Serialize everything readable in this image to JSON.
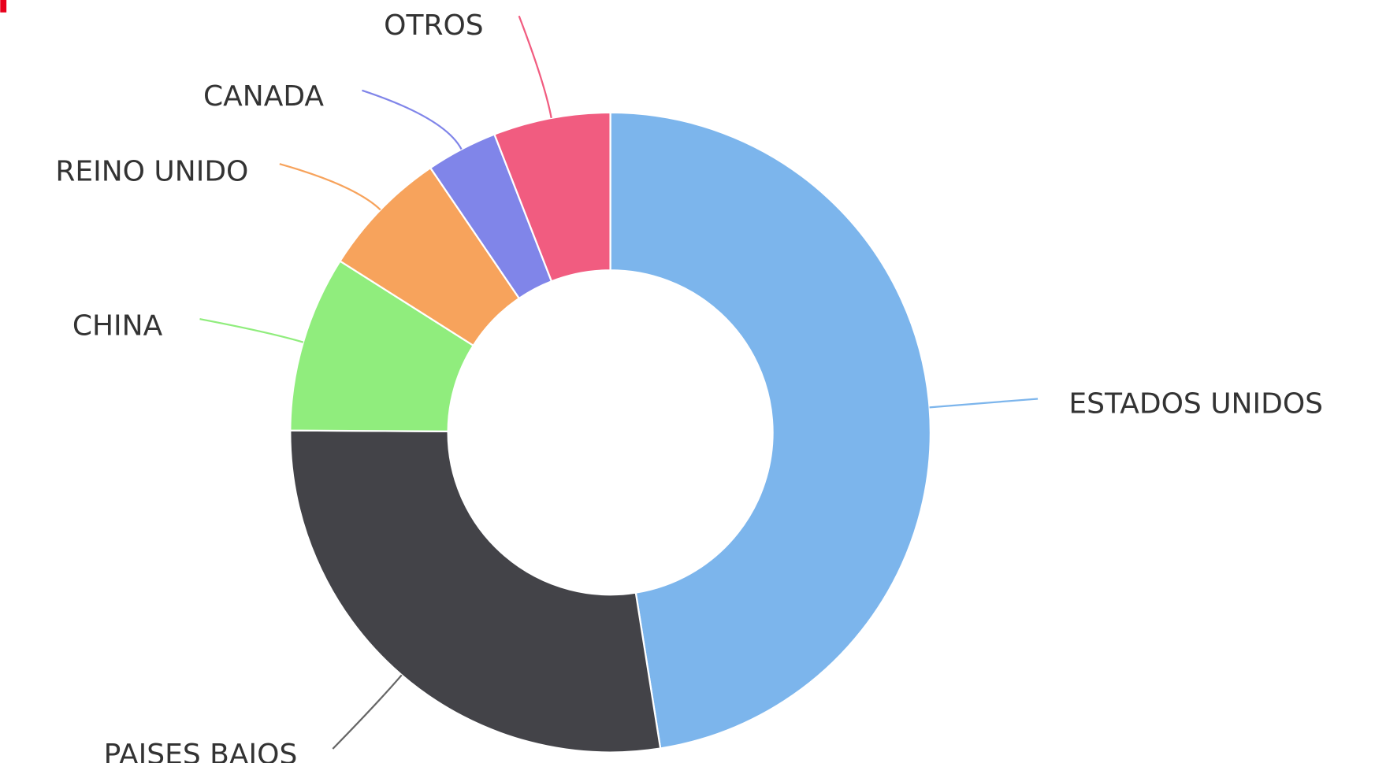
{
  "chart_data": {
    "type": "pie",
    "categories": [
      "ESTADOS UNIDOS",
      "PAISES BAJOS",
      "CHINA",
      "REINO UNIDO",
      "CANADA",
      "OTROS"
    ],
    "values": [
      47.5,
      27.6,
      8.9,
      6.5,
      3.6,
      5.9
    ],
    "colors": [
      "#7cb5ec",
      "#434348",
      "#90ed7d",
      "#f7a35c",
      "#8085e9",
      "#f15c80"
    ]
  }
}
